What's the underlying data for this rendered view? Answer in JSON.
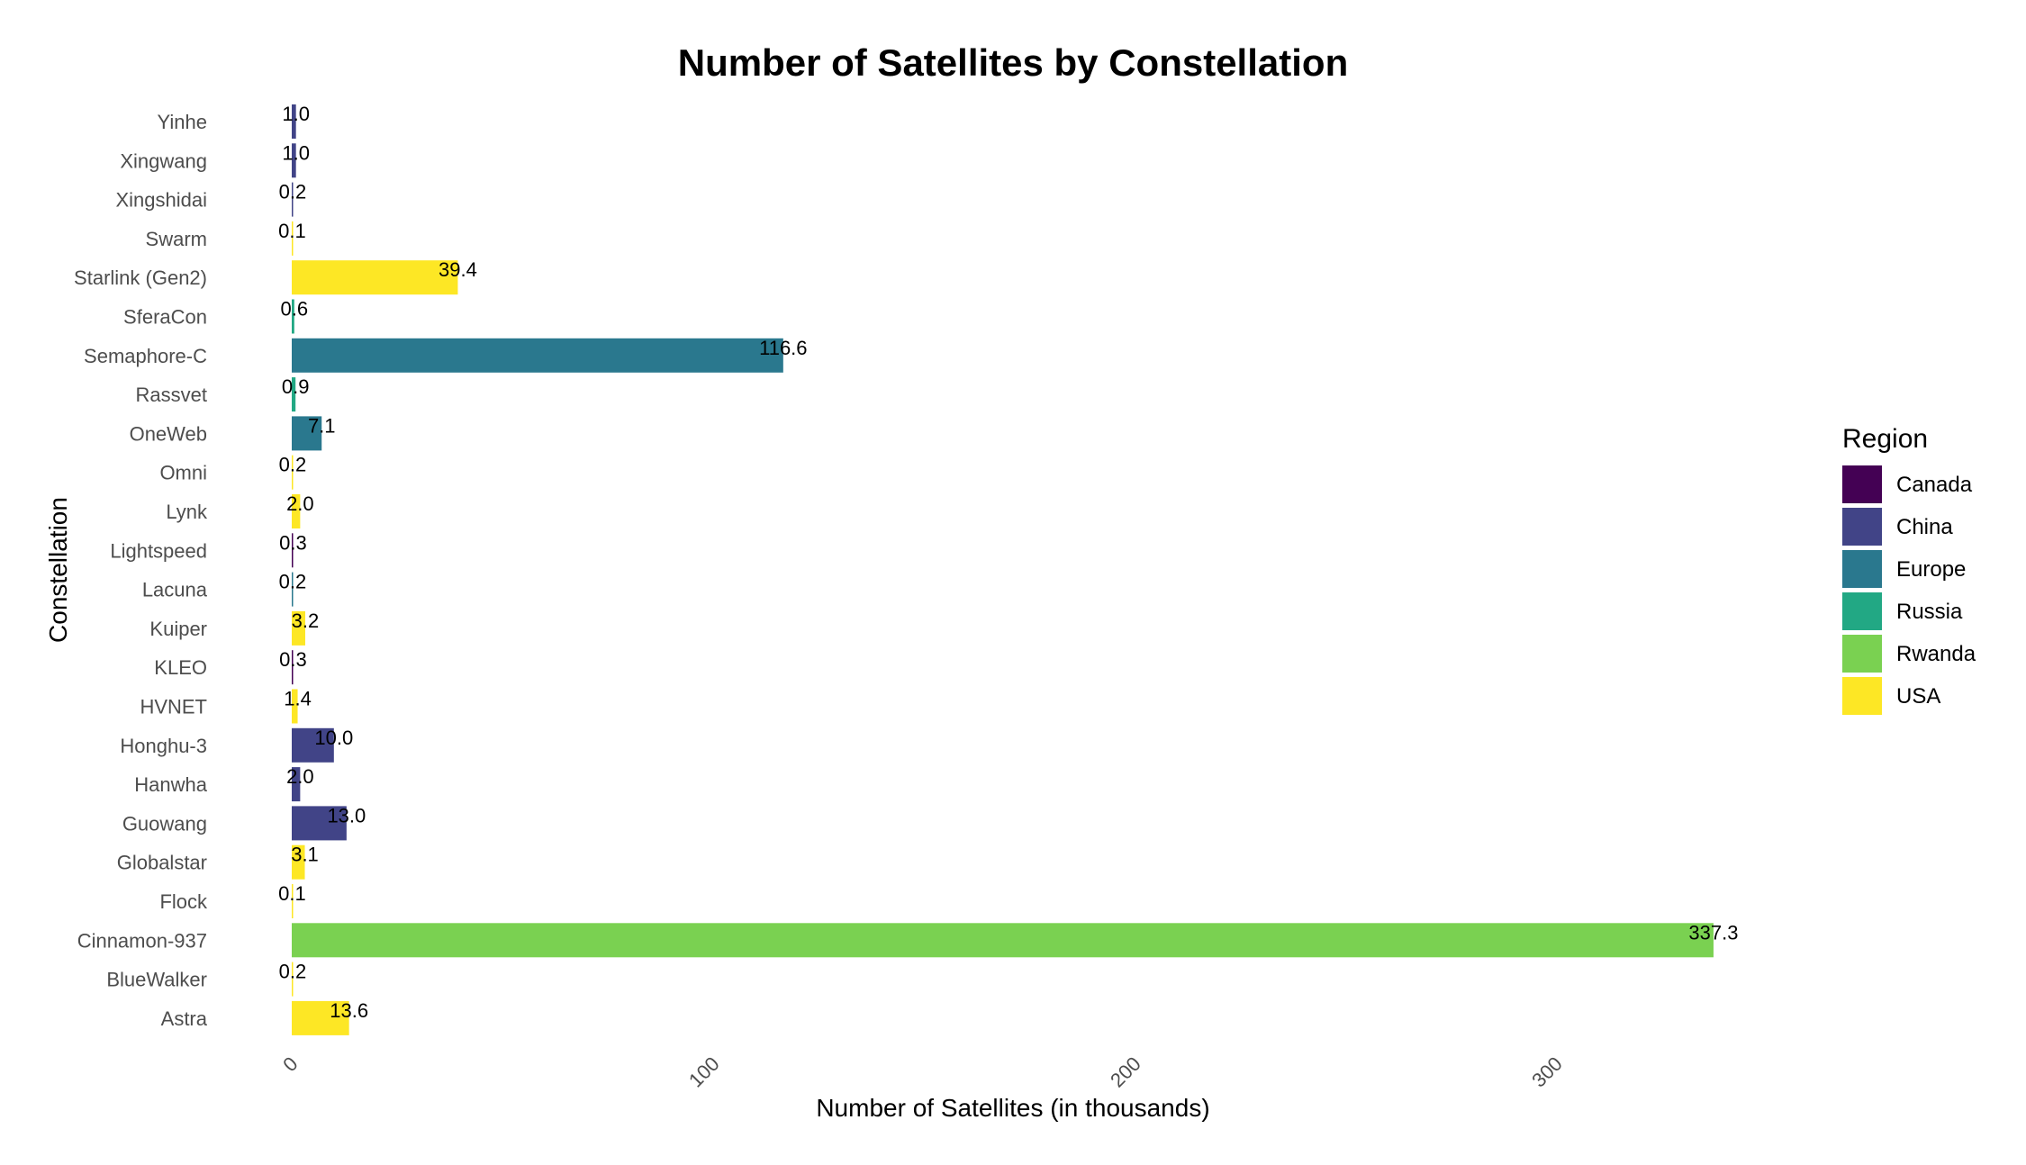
{
  "chart_data": {
    "type": "bar",
    "orientation": "horizontal",
    "title": "Number of Satellites by Constellation",
    "xlabel": "Number of Satellites (in thousands)",
    "ylabel": "Constellation",
    "xlim": [
      0,
      345
    ],
    "xticks": [
      0,
      100,
      200,
      300
    ],
    "xtick_labels": [
      "0",
      "100",
      "200",
      "300"
    ],
    "grid": false,
    "legend": {
      "title": "Region",
      "placement": "right",
      "entries": [
        {
          "name": "Canada",
          "color": "#440154"
        },
        {
          "name": "China",
          "color": "#414487"
        },
        {
          "name": "Europe",
          "color": "#2a788e"
        },
        {
          "name": "Russia",
          "color": "#22a884"
        },
        {
          "name": "Rwanda",
          "color": "#7ad151"
        },
        {
          "name": "USA",
          "color": "#fde725"
        }
      ]
    },
    "categories": [
      "Yinhe",
      "Xingwang",
      "Xingshidai",
      "Swarm",
      "Starlink (Gen2)",
      "SferaCon",
      "Semaphore-C",
      "Rassvet",
      "OneWeb",
      "Omni",
      "Lynk",
      "Lightspeed",
      "Lacuna",
      "Kuiper",
      "KLEO",
      "HVNET",
      "Honghu-3",
      "Hanwha",
      "Guowang",
      "Globalstar",
      "Flock",
      "Cinnamon-937",
      "BlueWalker",
      "Astra"
    ],
    "values": [
      1.0,
      1.0,
      0.2,
      0.1,
      39.4,
      0.6,
      116.6,
      0.9,
      7.1,
      0.2,
      2.0,
      0.3,
      0.2,
      3.2,
      0.3,
      1.4,
      10.0,
      2.0,
      13.0,
      3.1,
      0.1,
      337.3,
      0.2,
      13.6
    ],
    "value_labels": [
      "1.0",
      "1.0",
      "0.2",
      "0.1",
      "39.4",
      "0.6",
      "116.6",
      "0.9",
      "7.1",
      "0.2",
      "2.0",
      "0.3",
      "0.2",
      "3.2",
      "0.3",
      "1.4",
      "10.0",
      "2.0",
      "13.0",
      "3.1",
      "0.1",
      "337.3",
      "0.2",
      "13.6"
    ],
    "regions": [
      "China",
      "China",
      "China",
      "USA",
      "USA",
      "Russia",
      "Europe",
      "Russia",
      "Europe",
      "USA",
      "USA",
      "Canada",
      "Europe",
      "USA",
      "Canada",
      "USA",
      "China",
      "China",
      "China",
      "USA",
      "USA",
      "Rwanda",
      "USA",
      "USA"
    ]
  }
}
